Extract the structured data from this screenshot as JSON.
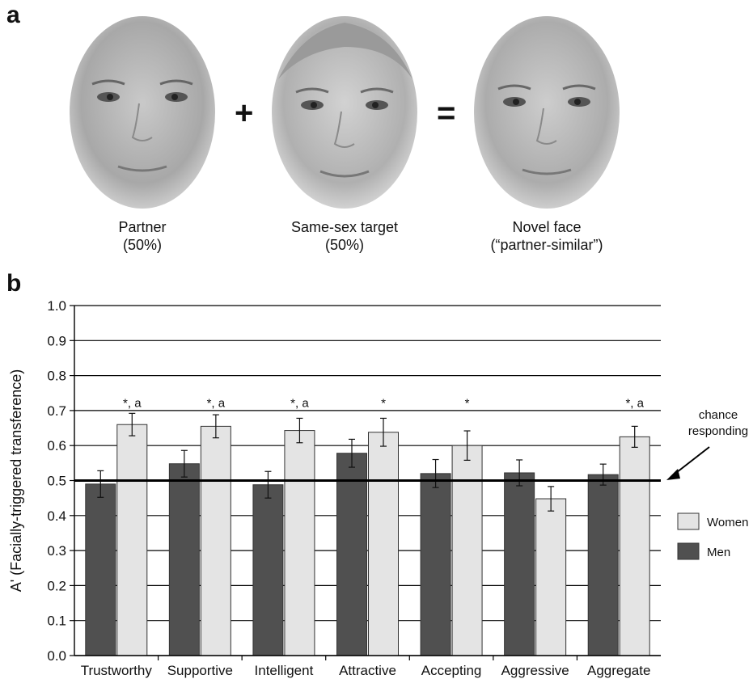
{
  "panel_a": {
    "label": "a",
    "faces": [
      {
        "line1": "Partner",
        "line2": "(50%)"
      },
      {
        "line1": "Same-sex target",
        "line2": "(50%)"
      },
      {
        "line1": "Novel face",
        "line2": "(“partner-similar”)"
      }
    ],
    "plus": "+",
    "equals": "="
  },
  "panel_b": {
    "label": "b"
  },
  "colors": {
    "women": "#e4e4e4",
    "men": "#505050"
  },
  "chart_data": {
    "type": "bar",
    "title": "",
    "xlabel": "",
    "ylabel": "A' (Facially-triggered transference)",
    "ylim": [
      0.0,
      1.0
    ],
    "yticks": [
      "0.0",
      "0.1",
      "0.2",
      "0.3",
      "0.4",
      "0.5",
      "0.6",
      "0.7",
      "0.8",
      "0.9",
      "1.0"
    ],
    "grid": true,
    "legend_position": "right",
    "categories": [
      "Trustworthy",
      "Supportive",
      "Intelligent",
      "Attractive",
      "Accepting",
      "Aggressive",
      "Aggregate"
    ],
    "series": [
      {
        "name": "Men",
        "values": [
          0.49,
          0.548,
          0.488,
          0.578,
          0.52,
          0.522,
          0.517
        ],
        "errors": [
          0.038,
          0.038,
          0.038,
          0.04,
          0.04,
          0.037,
          0.03
        ]
      },
      {
        "name": "Women",
        "values": [
          0.66,
          0.655,
          0.643,
          0.638,
          0.6,
          0.448,
          0.625
        ],
        "errors": [
          0.032,
          0.033,
          0.035,
          0.04,
          0.042,
          0.035,
          0.03
        ]
      }
    ],
    "significance": [
      "*, a",
      "*, a",
      "*, a",
      "*",
      "*",
      "",
      "*, a"
    ],
    "reference_line": {
      "value": 0.5,
      "label_line1": "chance",
      "label_line2": "responding"
    }
  }
}
